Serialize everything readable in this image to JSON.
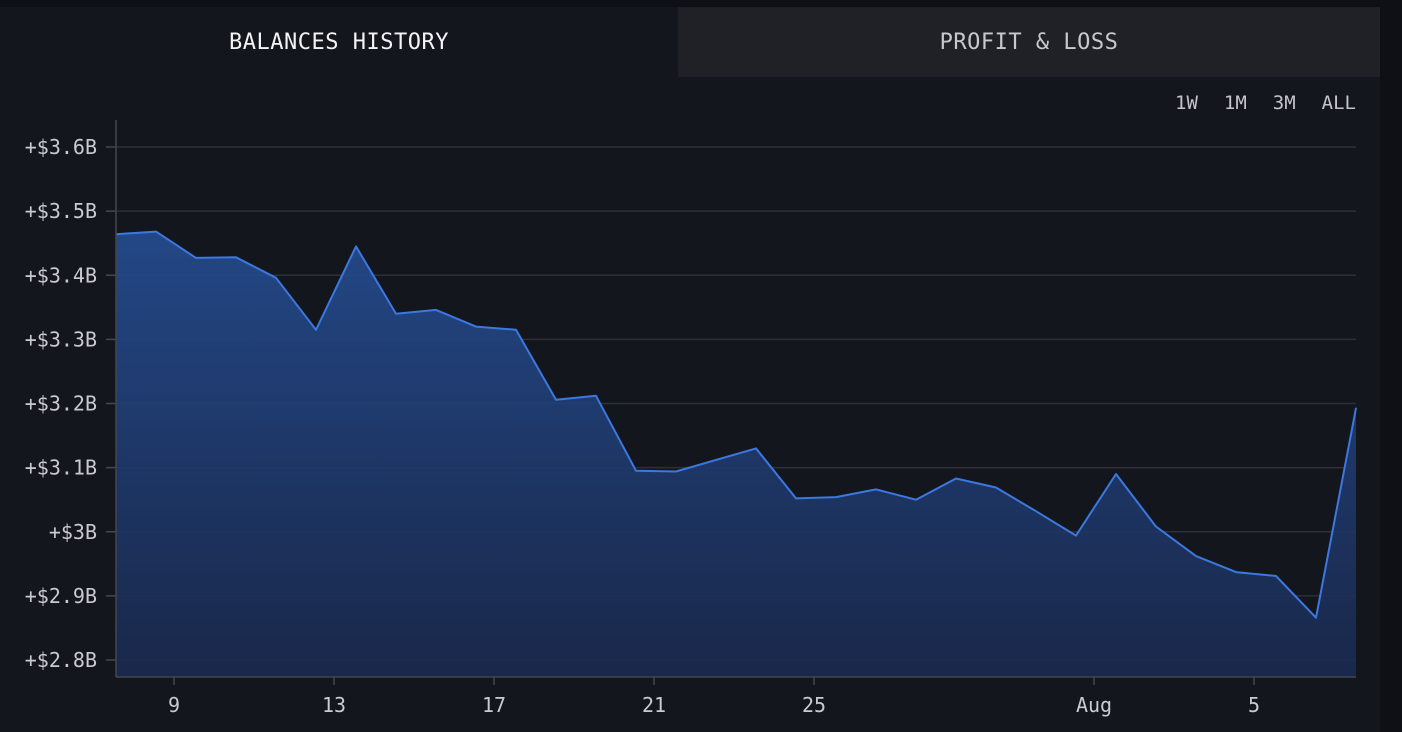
{
  "tabs": [
    {
      "label": "BALANCES HISTORY",
      "active": true
    },
    {
      "label": "PROFIT & LOSS",
      "active": false
    }
  ],
  "ranges": [
    "1W",
    "1M",
    "3M",
    "ALL"
  ],
  "colors": {
    "background": "#14161e",
    "line": "#3b78e0",
    "area_top": "#244a8c",
    "grid": "#2e3036"
  },
  "chart_data": {
    "type": "area",
    "grid": true,
    "x_tick_labels": [
      "9",
      "13",
      "17",
      "21",
      "25",
      "Aug",
      "5"
    ],
    "y_tick_labels": [
      "+$3.6B",
      "+$3.5B",
      "+$3.4B",
      "+$3.3B",
      "+$3.2B",
      "+$3.1B",
      "+$3B",
      "+$2.9B",
      "+$2.8B"
    ],
    "ylim": [
      2.8,
      3.6
    ],
    "x": [
      "Jul 8",
      "Jul 9",
      "Jul 10",
      "Jul 11",
      "Jul 12",
      "Jul 13",
      "Jul 14",
      "Jul 15",
      "Jul 16",
      "Jul 17",
      "Jul 18",
      "Jul 19",
      "Jul 20",
      "Jul 21",
      "Jul 22",
      "Jul 23",
      "Jul 24",
      "Jul 25",
      "Jul 26",
      "Jul 27",
      "Jul 28",
      "Jul 29",
      "Jul 30",
      "Jul 31",
      "Aug 1",
      "Aug 2",
      "Aug 3",
      "Aug 4",
      "Aug 5",
      "Aug 6",
      "Aug 7",
      "Aug 8"
    ],
    "values": [
      3.464,
      3.468,
      3.427,
      3.428,
      3.396,
      3.315,
      3.445,
      3.34,
      3.346,
      3.32,
      3.315,
      3.206,
      3.212,
      3.095,
      3.094,
      3.112,
      3.13,
      3.052,
      3.054,
      3.066,
      3.05,
      3.083,
      3.069,
      3.032,
      2.994,
      3.09,
      3.008,
      2.962,
      2.937,
      2.931,
      2.866,
      3.193
    ]
  }
}
